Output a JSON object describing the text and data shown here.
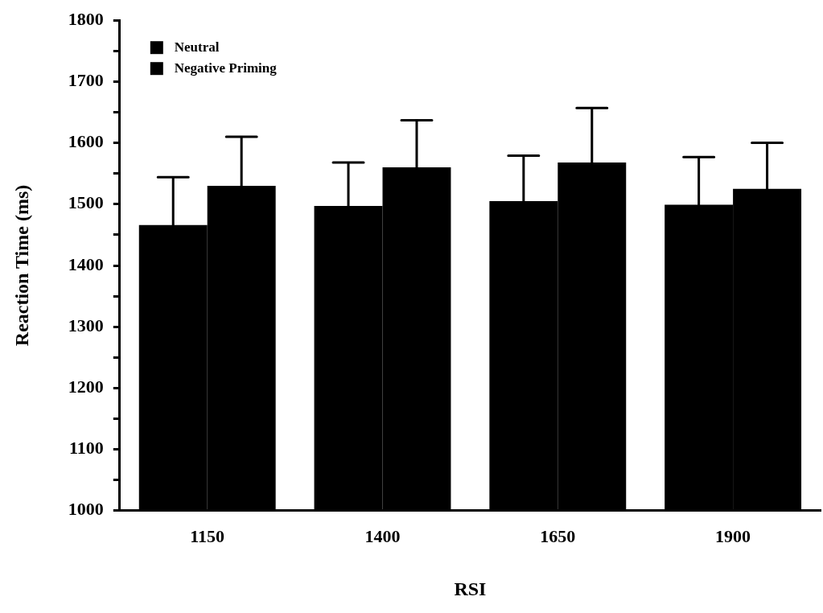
{
  "chart_data": {
    "type": "bar",
    "xlabel": "RSI",
    "ylabel": "Reaction Time (ms)",
    "categories": [
      "1150",
      "1400",
      "1650",
      "1900"
    ],
    "series": [
      {
        "name": "Neutral",
        "color": "#000000",
        "values": [
          1466,
          1497,
          1505,
          1499
        ],
        "errors": [
          [
            1466,
            1544
          ],
          [
            1497,
            1568
          ],
          [
            1505,
            1579
          ],
          [
            1499,
            1577
          ]
        ]
      },
      {
        "name": "Negative Priming",
        "color": "#000000",
        "values": [
          1530,
          1560,
          1568,
          1525
        ],
        "errors": [
          [
            1530,
            1610
          ],
          [
            1560,
            1637
          ],
          [
            1568,
            1657
          ],
          [
            1525,
            1600
          ]
        ]
      }
    ],
    "ylim": [
      1000,
      1800
    ],
    "yticks": [
      1000,
      {
        "value": 1050,
        "label": null
      },
      1100,
      {
        "value": 1150,
        "label": null
      },
      1200,
      {
        "value": 1250,
        "label": null
      },
      1300,
      {
        "value": 1350,
        "label": null
      },
      1400,
      {
        "value": 1450,
        "label": null
      },
      1500,
      {
        "value": 1550,
        "label": null
      },
      1600,
      {
        "value": 1650,
        "label": null
      },
      1700,
      {
        "value": 1750,
        "label": null
      },
      1800
    ],
    "grid": false,
    "legend": "top left"
  }
}
